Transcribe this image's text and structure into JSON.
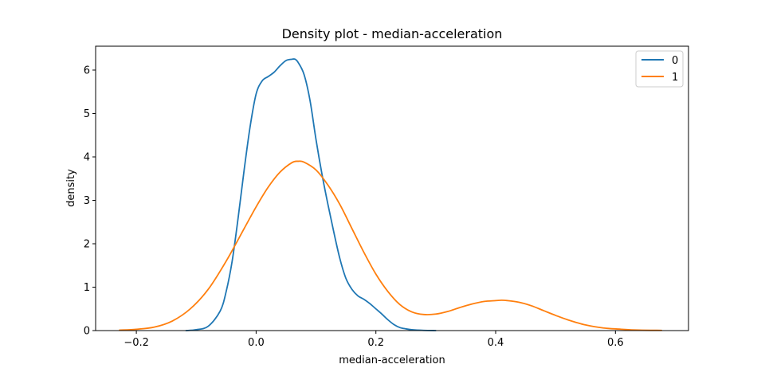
{
  "chart_data": {
    "type": "line",
    "title": "Density plot - median-acceleration",
    "xlabel": "median-acceleration",
    "ylabel": "density",
    "xlim": [
      -0.268,
      0.722
    ],
    "ylim": [
      0,
      6.55
    ],
    "xticks": [
      {
        "value": -0.2,
        "label": "−0.2"
      },
      {
        "value": 0.0,
        "label": "0.0"
      },
      {
        "value": 0.2,
        "label": "0.2"
      },
      {
        "value": 0.4,
        "label": "0.4"
      },
      {
        "value": 0.6,
        "label": "0.6"
      }
    ],
    "yticks": [
      {
        "value": 0,
        "label": "0"
      },
      {
        "value": 1,
        "label": "1"
      },
      {
        "value": 2,
        "label": "2"
      },
      {
        "value": 3,
        "label": "3"
      },
      {
        "value": 4,
        "label": "4"
      },
      {
        "value": 5,
        "label": "5"
      },
      {
        "value": 6,
        "label": "6"
      }
    ],
    "grid": false,
    "legend": "top-right",
    "series": [
      {
        "name": "0",
        "color": "#1f77b4",
        "x": [
          -0.117,
          -0.1,
          -0.08,
          -0.06,
          -0.05,
          -0.04,
          -0.03,
          -0.02,
          -0.01,
          0.0,
          0.01,
          0.02,
          0.03,
          0.04,
          0.05,
          0.06,
          0.065,
          0.07,
          0.08,
          0.09,
          0.1,
          0.11,
          0.12,
          0.13,
          0.14,
          0.15,
          0.16,
          0.17,
          0.18,
          0.19,
          0.2,
          0.21,
          0.22,
          0.23,
          0.24,
          0.25,
          0.26,
          0.28,
          0.3
        ],
        "y": [
          0.0,
          0.02,
          0.1,
          0.45,
          0.9,
          1.6,
          2.6,
          3.7,
          4.7,
          5.45,
          5.75,
          5.85,
          5.95,
          6.1,
          6.22,
          6.25,
          6.25,
          6.18,
          5.9,
          5.3,
          4.4,
          3.6,
          2.9,
          2.25,
          1.65,
          1.2,
          0.95,
          0.8,
          0.72,
          0.62,
          0.5,
          0.38,
          0.25,
          0.14,
          0.07,
          0.04,
          0.02,
          0.005,
          0.0
        ]
      },
      {
        "name": "1",
        "color": "#ff7f0e",
        "x": [
          -0.228,
          -0.2,
          -0.17,
          -0.14,
          -0.11,
          -0.08,
          -0.05,
          -0.02,
          0.0,
          0.02,
          0.04,
          0.06,
          0.07,
          0.08,
          0.1,
          0.12,
          0.14,
          0.16,
          0.18,
          0.2,
          0.22,
          0.24,
          0.26,
          0.28,
          0.3,
          0.32,
          0.34,
          0.36,
          0.38,
          0.4,
          0.41,
          0.42,
          0.44,
          0.46,
          0.48,
          0.5,
          0.52,
          0.55,
          0.58,
          0.61,
          0.64,
          0.677
        ],
        "y": [
          0.01,
          0.03,
          0.08,
          0.22,
          0.5,
          0.95,
          1.6,
          2.35,
          2.85,
          3.3,
          3.65,
          3.87,
          3.9,
          3.88,
          3.7,
          3.35,
          2.9,
          2.35,
          1.8,
          1.3,
          0.9,
          0.6,
          0.43,
          0.37,
          0.38,
          0.44,
          0.53,
          0.61,
          0.67,
          0.69,
          0.7,
          0.69,
          0.65,
          0.57,
          0.46,
          0.35,
          0.25,
          0.13,
          0.06,
          0.03,
          0.01,
          0.005
        ]
      }
    ]
  }
}
